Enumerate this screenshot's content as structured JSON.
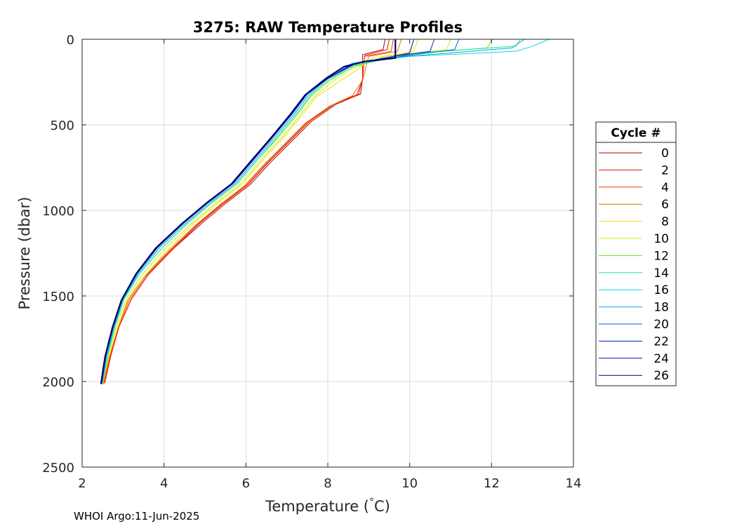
{
  "chart_data": {
    "type": "line",
    "title": "3275: RAW Temperature Profiles",
    "xlabel": "Temperature (",
    "xlabel_unit": "C)",
    "ylabel": "Pressure (dbar)",
    "xlim": [
      2,
      14
    ],
    "ylim": [
      0,
      2500
    ],
    "y_reversed": true,
    "grid": true,
    "xticks": [
      2,
      4,
      6,
      8,
      10,
      12,
      14
    ],
    "yticks": [
      0,
      500,
      1000,
      1500,
      2000,
      2500
    ],
    "footer": "WHOI Argo:11-Jun-2025",
    "legend": {
      "title": "Cycle #",
      "placement": "right-outside",
      "entries": [
        {
          "label": "0",
          "color": "#b00000"
        },
        {
          "label": "2",
          "color": "#e81000"
        },
        {
          "label": "4",
          "color": "#ff3a00"
        },
        {
          "label": "6",
          "color": "#e07000"
        },
        {
          "label": "8",
          "color": "#f0e000"
        },
        {
          "label": "10",
          "color": "#c8f000"
        },
        {
          "label": "12",
          "color": "#60e020"
        },
        {
          "label": "14",
          "color": "#20e090"
        },
        {
          "label": "16",
          "color": "#10d8e0"
        },
        {
          "label": "18",
          "color": "#00a8f0"
        },
        {
          "label": "20",
          "color": "#0060e0"
        },
        {
          "label": "22",
          "color": "#0028c8"
        },
        {
          "label": "24",
          "color": "#0010a0"
        },
        {
          "label": "26",
          "color": "#000070"
        }
      ]
    },
    "series": [
      {
        "cycle": 0,
        "color": "#b00000",
        "points": [
          [
            9.4,
            0
          ],
          [
            9.35,
            60
          ],
          [
            8.85,
            90
          ],
          [
            8.85,
            230
          ],
          [
            8.8,
            320
          ],
          [
            8.2,
            380
          ],
          [
            7.6,
            480
          ],
          [
            7.1,
            600
          ],
          [
            6.6,
            720
          ],
          [
            6.1,
            850
          ],
          [
            5.5,
            960
          ],
          [
            4.9,
            1080
          ],
          [
            4.2,
            1230
          ],
          [
            3.6,
            1380
          ],
          [
            3.2,
            1520
          ],
          [
            2.9,
            1680
          ],
          [
            2.7,
            1850
          ],
          [
            2.55,
            2010
          ]
        ]
      },
      {
        "cycle": 2,
        "color": "#e81000",
        "points": [
          [
            9.5,
            0
          ],
          [
            9.45,
            60
          ],
          [
            8.9,
            95
          ],
          [
            8.85,
            230
          ],
          [
            8.75,
            320
          ],
          [
            8.15,
            380
          ],
          [
            7.55,
            480
          ],
          [
            7.05,
            600
          ],
          [
            6.55,
            720
          ],
          [
            6.05,
            850
          ],
          [
            5.45,
            960
          ],
          [
            4.85,
            1080
          ],
          [
            4.2,
            1230
          ],
          [
            3.6,
            1380
          ],
          [
            3.2,
            1520
          ],
          [
            2.9,
            1680
          ],
          [
            2.7,
            1850
          ],
          [
            2.55,
            2010
          ]
        ]
      },
      {
        "cycle": 4,
        "color": "#ff3a00",
        "points": [
          [
            9.6,
            0
          ],
          [
            9.55,
            70
          ],
          [
            8.9,
            100
          ],
          [
            8.85,
            230
          ],
          [
            8.7,
            330
          ],
          [
            8.1,
            385
          ],
          [
            7.5,
            485
          ],
          [
            7.0,
            605
          ],
          [
            6.5,
            725
          ],
          [
            6.0,
            855
          ],
          [
            5.4,
            965
          ],
          [
            4.8,
            1085
          ],
          [
            4.15,
            1235
          ],
          [
            3.55,
            1385
          ],
          [
            3.15,
            1525
          ],
          [
            2.88,
            1685
          ],
          [
            2.68,
            1855
          ],
          [
            2.52,
            2015
          ]
        ]
      },
      {
        "cycle": 6,
        "color": "#e07000",
        "points": [
          [
            9.8,
            0
          ],
          [
            9.7,
            70
          ],
          [
            9.0,
            100
          ],
          [
            8.85,
            240
          ],
          [
            8.6,
            330
          ],
          [
            8.05,
            390
          ],
          [
            7.45,
            490
          ],
          [
            6.95,
            610
          ],
          [
            6.45,
            730
          ],
          [
            5.95,
            860
          ],
          [
            5.35,
            970
          ],
          [
            4.75,
            1090
          ],
          [
            4.1,
            1240
          ],
          [
            3.5,
            1390
          ],
          [
            3.1,
            1530
          ],
          [
            2.86,
            1690
          ],
          [
            2.66,
            1860
          ],
          [
            2.5,
            2015
          ]
        ]
      },
      {
        "cycle": 8,
        "color": "#f0e000",
        "points": [
          [
            10.2,
            0
          ],
          [
            10.1,
            70
          ],
          [
            9.1,
            110
          ],
          [
            8.7,
            180
          ],
          [
            8.2,
            260
          ],
          [
            7.7,
            340
          ],
          [
            7.35,
            450
          ],
          [
            6.9,
            580
          ],
          [
            6.4,
            710
          ],
          [
            5.9,
            850
          ],
          [
            5.3,
            960
          ],
          [
            4.7,
            1080
          ],
          [
            4.05,
            1240
          ],
          [
            3.5,
            1390
          ],
          [
            3.1,
            1540
          ],
          [
            2.85,
            1700
          ],
          [
            2.65,
            1860
          ],
          [
            2.5,
            2015
          ]
        ]
      },
      {
        "cycle": 10,
        "color": "#c8f000",
        "points": [
          [
            11.0,
            0
          ],
          [
            10.9,
            60
          ],
          [
            9.4,
            100
          ],
          [
            8.6,
            170
          ],
          [
            8.1,
            250
          ],
          [
            7.65,
            340
          ],
          [
            7.3,
            450
          ],
          [
            6.85,
            580
          ],
          [
            6.35,
            710
          ],
          [
            5.85,
            850
          ],
          [
            5.25,
            960
          ],
          [
            4.65,
            1080
          ],
          [
            4.0,
            1230
          ],
          [
            3.45,
            1380
          ],
          [
            3.05,
            1530
          ],
          [
            2.82,
            1690
          ],
          [
            2.64,
            1860
          ],
          [
            2.5,
            2015
          ]
        ]
      },
      {
        "cycle": 12,
        "color": "#60e020",
        "points": [
          [
            12.0,
            0
          ],
          [
            11.9,
            50
          ],
          [
            9.8,
            90
          ],
          [
            8.6,
            160
          ],
          [
            8.05,
            240
          ],
          [
            7.6,
            330
          ],
          [
            7.25,
            440
          ],
          [
            6.8,
            570
          ],
          [
            6.3,
            700
          ],
          [
            5.8,
            840
          ],
          [
            5.2,
            950
          ],
          [
            4.6,
            1070
          ],
          [
            3.95,
            1220
          ],
          [
            3.4,
            1370
          ],
          [
            3.02,
            1520
          ],
          [
            2.8,
            1680
          ],
          [
            2.62,
            1850
          ],
          [
            2.5,
            2010
          ]
        ]
      },
      {
        "cycle": 14,
        "color": "#20e090",
        "points": [
          [
            12.7,
            0
          ],
          [
            12.6,
            40
          ],
          [
            10.2,
            80
          ],
          [
            8.7,
            150
          ],
          [
            8.05,
            230
          ],
          [
            7.6,
            320
          ],
          [
            7.25,
            430
          ],
          [
            6.8,
            560
          ],
          [
            6.3,
            700
          ],
          [
            5.8,
            840
          ],
          [
            5.2,
            950
          ],
          [
            4.6,
            1070
          ],
          [
            3.95,
            1220
          ],
          [
            3.4,
            1370
          ],
          [
            3.02,
            1520
          ],
          [
            2.8,
            1680
          ],
          [
            2.62,
            1850
          ],
          [
            2.5,
            2010
          ]
        ]
      },
      {
        "cycle": 16,
        "color": "#10d8e0",
        "points": [
          [
            13.4,
            0
          ],
          [
            13.0,
            40
          ],
          [
            12.6,
            70
          ],
          [
            10.0,
            100
          ],
          [
            8.7,
            140
          ],
          [
            8.0,
            230
          ],
          [
            7.55,
            320
          ],
          [
            7.2,
            430
          ],
          [
            6.75,
            560
          ],
          [
            6.25,
            700
          ],
          [
            5.75,
            840
          ],
          [
            5.15,
            950
          ],
          [
            4.55,
            1070
          ],
          [
            3.9,
            1215
          ],
          [
            3.38,
            1365
          ],
          [
            3.0,
            1520
          ],
          [
            2.78,
            1680
          ],
          [
            2.6,
            1850
          ],
          [
            2.48,
            2010
          ]
        ]
      },
      {
        "cycle": 18,
        "color": "#00a8f0",
        "points": [
          [
            12.8,
            0
          ],
          [
            12.5,
            50
          ],
          [
            11.0,
            80
          ],
          [
            9.4,
            110
          ],
          [
            8.6,
            140
          ],
          [
            8.0,
            230
          ],
          [
            7.55,
            320
          ],
          [
            7.2,
            430
          ],
          [
            6.75,
            560
          ],
          [
            6.25,
            700
          ],
          [
            5.75,
            840
          ],
          [
            5.15,
            950
          ],
          [
            4.55,
            1070
          ],
          [
            3.9,
            1215
          ],
          [
            3.38,
            1365
          ],
          [
            3.0,
            1520
          ],
          [
            2.78,
            1680
          ],
          [
            2.6,
            1850
          ],
          [
            2.48,
            2010
          ]
        ]
      },
      {
        "cycle": 20,
        "color": "#0060e0",
        "points": [
          [
            11.2,
            0
          ],
          [
            11.1,
            60
          ],
          [
            9.8,
            100
          ],
          [
            8.7,
            140
          ],
          [
            8.0,
            230
          ],
          [
            7.5,
            320
          ],
          [
            7.15,
            430
          ],
          [
            6.7,
            560
          ],
          [
            6.2,
            700
          ],
          [
            5.7,
            840
          ],
          [
            5.1,
            950
          ],
          [
            4.5,
            1070
          ],
          [
            3.85,
            1215
          ],
          [
            3.35,
            1365
          ],
          [
            2.98,
            1520
          ],
          [
            2.76,
            1680
          ],
          [
            2.58,
            1850
          ],
          [
            2.48,
            2010
          ]
        ]
      },
      {
        "cycle": 22,
        "color": "#0028c8",
        "points": [
          [
            10.6,
            0
          ],
          [
            10.5,
            70
          ],
          [
            9.6,
            100
          ],
          [
            8.7,
            140
          ],
          [
            8.0,
            225
          ],
          [
            7.5,
            320
          ],
          [
            7.15,
            430
          ],
          [
            6.7,
            560
          ],
          [
            6.2,
            700
          ],
          [
            5.7,
            840
          ],
          [
            5.1,
            950
          ],
          [
            4.5,
            1070
          ],
          [
            3.85,
            1215
          ],
          [
            3.35,
            1365
          ],
          [
            2.98,
            1520
          ],
          [
            2.76,
            1680
          ],
          [
            2.58,
            1850
          ],
          [
            2.48,
            2010
          ]
        ]
      },
      {
        "cycle": 24,
        "color": "#0010a0",
        "points": [
          [
            10.1,
            0
          ],
          [
            10.0,
            80
          ],
          [
            9.4,
            110
          ],
          [
            8.6,
            145
          ],
          [
            8.0,
            230
          ],
          [
            7.45,
            325
          ],
          [
            7.1,
            435
          ],
          [
            6.65,
            565
          ],
          [
            6.15,
            705
          ],
          [
            5.65,
            845
          ],
          [
            5.05,
            955
          ],
          [
            4.45,
            1075
          ],
          [
            3.8,
            1220
          ],
          [
            3.32,
            1370
          ],
          [
            2.96,
            1525
          ],
          [
            2.74,
            1685
          ],
          [
            2.56,
            1855
          ],
          [
            2.46,
            2015
          ]
        ]
      },
      {
        "cycle": 26,
        "color": "#000070",
        "points": [
          [
            9.65,
            0
          ],
          [
            9.65,
            110
          ],
          [
            8.9,
            130
          ],
          [
            8.4,
            160
          ],
          [
            7.95,
            230
          ],
          [
            7.45,
            325
          ],
          [
            7.1,
            435
          ],
          [
            6.65,
            565
          ],
          [
            6.15,
            705
          ],
          [
            5.65,
            845
          ],
          [
            5.05,
            955
          ],
          [
            4.45,
            1075
          ],
          [
            3.8,
            1220
          ],
          [
            3.32,
            1370
          ],
          [
            2.96,
            1525
          ],
          [
            2.74,
            1685
          ],
          [
            2.56,
            1855
          ],
          [
            2.46,
            2015
          ]
        ]
      }
    ]
  }
}
